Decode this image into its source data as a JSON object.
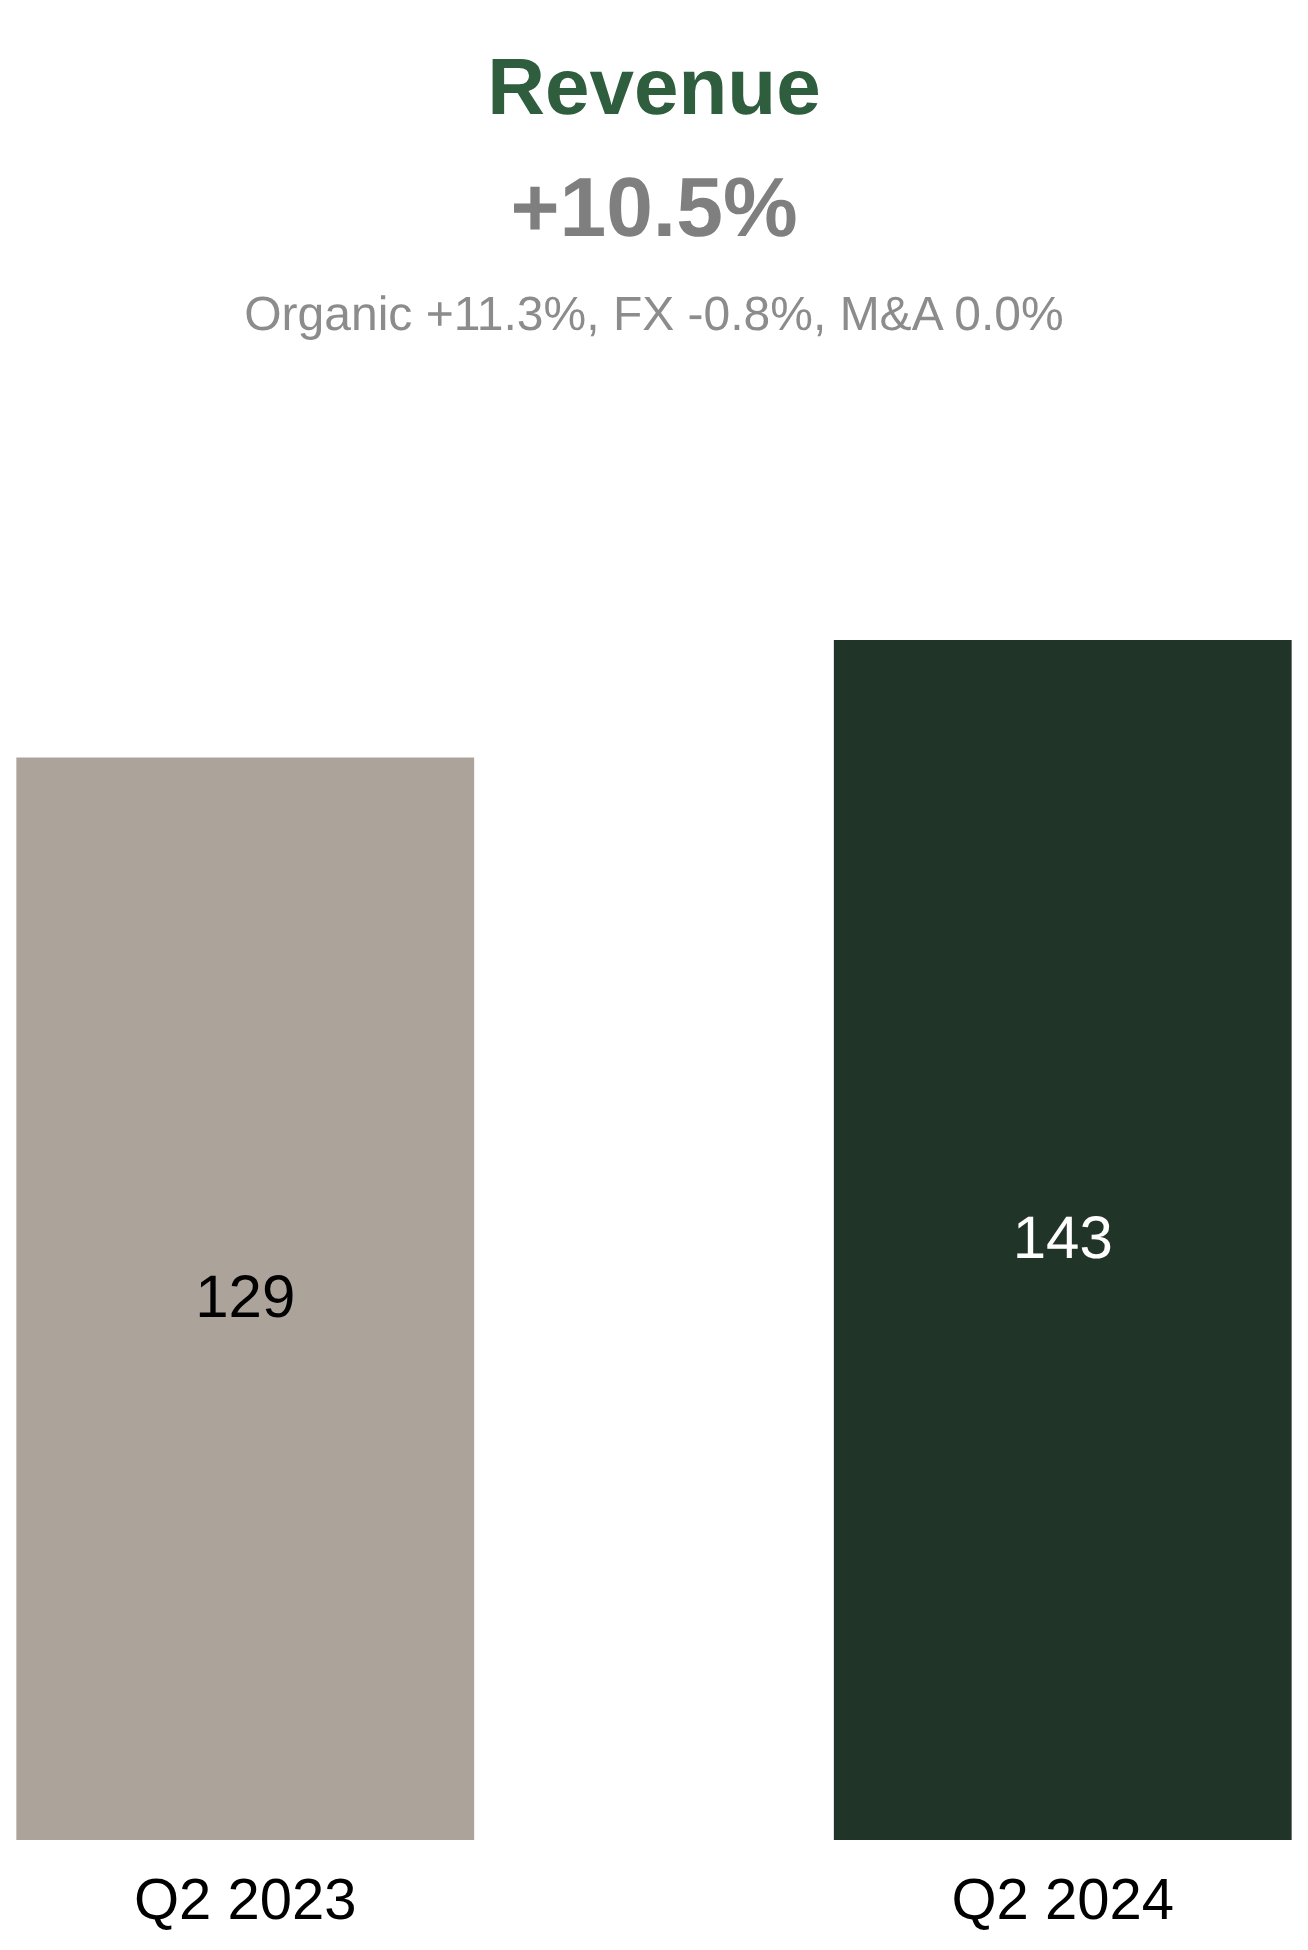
{
  "chart_data": {
    "type": "bar",
    "title": "Revenue",
    "subtitle": "+10.5%",
    "annotations": [
      "Organic +11.3%, FX -0.8%, M&A 0.0%"
    ],
    "categories": [
      "Q2 2023",
      "Q2 2024"
    ],
    "values": [
      129,
      143
    ],
    "colors": [
      "#aca39a",
      "#213428"
    ],
    "data_labels": true
  }
}
